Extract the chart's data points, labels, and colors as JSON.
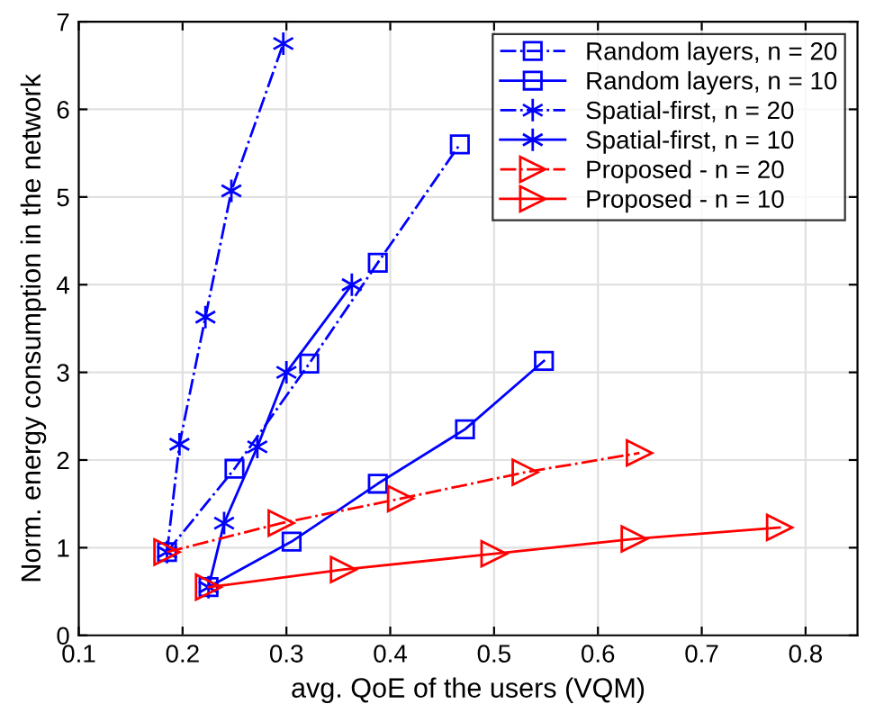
{
  "chart_data": {
    "type": "line",
    "xlabel": "avg. QoE of the users (VQM)",
    "ylabel": "Norm. energy consumption in the network",
    "xlim": [
      0.1,
      0.85
    ],
    "xticks": [
      0.1,
      0.2,
      0.3,
      0.4,
      0.5,
      0.6,
      0.7,
      0.8
    ],
    "ylim": [
      0,
      7
    ],
    "yticks": [
      0,
      1,
      2,
      3,
      4,
      5,
      6,
      7
    ],
    "grid": true,
    "legend": "top right",
    "series": [
      {
        "name": "Random layers, n = 20",
        "color": "#0000ff",
        "marker": "square",
        "line_style": "dashed",
        "x": [
          0.185,
          0.25,
          0.322,
          0.388,
          0.467
        ],
        "values": [
          0.95,
          1.9,
          3.1,
          4.25,
          5.6
        ]
      },
      {
        "name": "Random layers, n = 10",
        "color": "#0000ff",
        "marker": "square",
        "line_style": "solid",
        "x": [
          0.225,
          0.305,
          0.388,
          0.472,
          0.548
        ],
        "values": [
          0.55,
          1.07,
          1.73,
          2.35,
          3.13
        ]
      },
      {
        "name": "Spatial-first, n = 20",
        "color": "#0000ff",
        "marker": "cross",
        "line_style": "dashed",
        "x": [
          0.185,
          0.197,
          0.222,
          0.247,
          0.297
        ],
        "values": [
          0.95,
          2.18,
          3.63,
          5.07,
          6.75
        ]
      },
      {
        "name": "Spatial-first, n = 10",
        "color": "#0000ff",
        "marker": "cross",
        "line_style": "solid",
        "x": [
          0.225,
          0.24,
          0.272,
          0.3,
          0.363
        ],
        "values": [
          0.55,
          1.28,
          2.15,
          3.0,
          4.0
        ]
      },
      {
        "name": "Proposed - n = 20",
        "color": "#ff0000",
        "marker": "triangle",
        "line_style": "dashed",
        "x": [
          0.185,
          0.295,
          0.41,
          0.53,
          0.64
        ],
        "values": [
          0.95,
          1.28,
          1.56,
          1.86,
          2.08
        ]
      },
      {
        "name": "Proposed - n = 10",
        "color": "#ff0000",
        "marker": "triangle",
        "line_style": "solid",
        "x": [
          0.225,
          0.355,
          0.5,
          0.635,
          0.775
        ],
        "values": [
          0.55,
          0.75,
          0.93,
          1.1,
          1.23
        ]
      }
    ]
  }
}
